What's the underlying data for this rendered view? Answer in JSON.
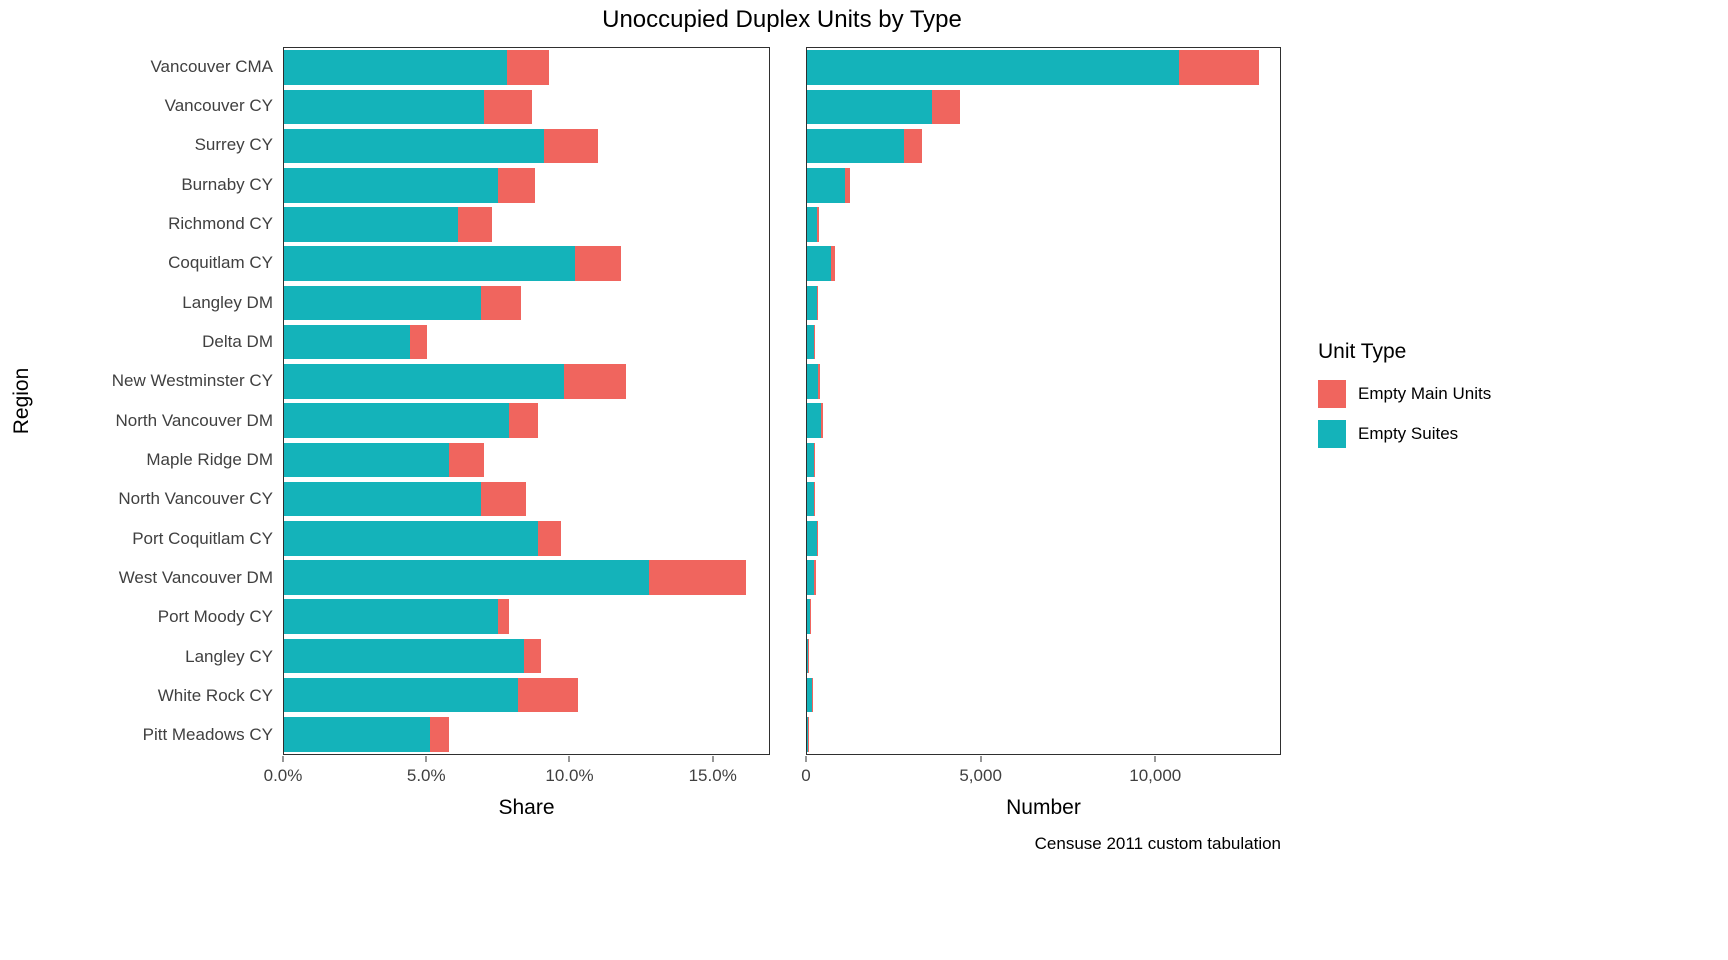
{
  "chart_data": {
    "type": "bar",
    "orientation": "horizontal",
    "stacked": true,
    "grid": false,
    "title": "Unoccupied Duplex Units by Type",
    "ylabel": "Region",
    "caption": "Censuse 2011 custom tabulation",
    "legend": {
      "title": "Unit Type",
      "position": "right",
      "entries": [
        {
          "label": "Empty Main Units",
          "color": "#f0655e"
        },
        {
          "label": "Empty Suites",
          "color": "#14b3ba"
        }
      ]
    },
    "categories": [
      "Vancouver CMA",
      "Vancouver CY",
      "Surrey CY",
      "Burnaby CY",
      "Richmond CY",
      "Coquitlam CY",
      "Langley DM",
      "Delta DM",
      "New Westminster CY",
      "North Vancouver DM",
      "Maple Ridge DM",
      "North Vancouver CY",
      "Port Coquitlam CY",
      "West Vancouver DM",
      "Port Moody CY",
      "Langley CY",
      "White Rock CY",
      "Pitt Meadows CY"
    ],
    "panels": [
      {
        "id": "share",
        "xlabel": "Share",
        "xlim": [
          0,
          17
        ],
        "ticks": [
          0,
          5,
          10,
          15
        ],
        "tick_labels": [
          "0.0%",
          "5.0%",
          "10.0%",
          "15.0%"
        ],
        "series": [
          {
            "name": "Empty Suites",
            "values": [
              7.8,
              7.0,
              9.1,
              7.5,
              6.1,
              10.2,
              6.9,
              4.4,
              9.8,
              7.9,
              5.8,
              6.9,
              8.9,
              12.8,
              7.5,
              8.4,
              8.2,
              5.1
            ]
          },
          {
            "name": "Empty Main Units",
            "values": [
              1.5,
              1.7,
              1.9,
              1.3,
              1.2,
              1.6,
              1.4,
              0.6,
              2.2,
              1.0,
              1.2,
              1.6,
              0.8,
              3.4,
              0.4,
              0.6,
              2.1,
              0.7
            ]
          }
        ]
      },
      {
        "id": "number",
        "xlabel": "Number",
        "xlim": [
          0,
          13600
        ],
        "ticks": [
          0,
          5000,
          10000
        ],
        "tick_labels": [
          "0",
          "5,000",
          "10,000"
        ],
        "series": [
          {
            "name": "Empty Suites",
            "values": [
              10700,
              3600,
              2800,
              1100,
              290,
              700,
              280,
              200,
              310,
              390,
              190,
              190,
              280,
              210,
              90,
              40,
              130,
              40
            ]
          },
          {
            "name": "Empty Main Units",
            "values": [
              2300,
              800,
              500,
              150,
              50,
              100,
              50,
              30,
              70,
              60,
              40,
              40,
              30,
              60,
              10,
              10,
              40,
              10
            ]
          }
        ]
      }
    ]
  }
}
